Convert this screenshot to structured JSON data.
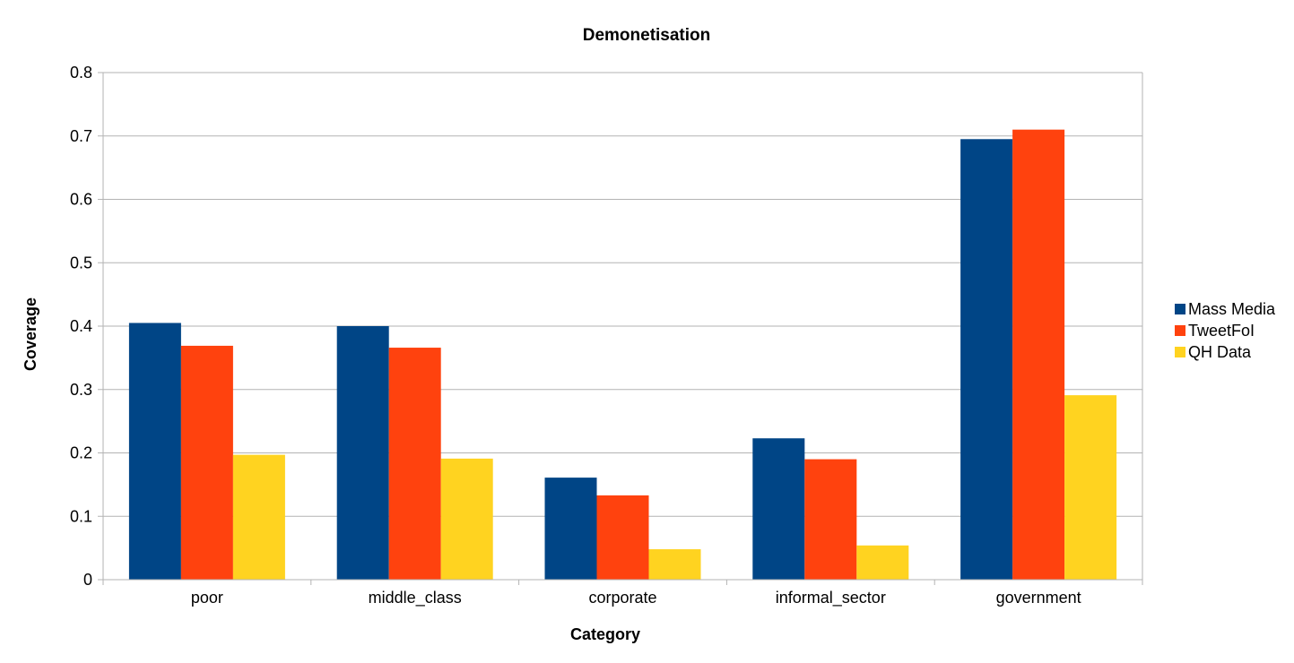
{
  "chart_data": {
    "type": "bar",
    "title": "Demonetisation",
    "xlabel": "Category",
    "ylabel": "Coverage",
    "categories": [
      "poor",
      "middle_class",
      "corporate",
      "informal_sector",
      "government"
    ],
    "series": [
      {
        "name": "Mass Media",
        "color": "#004586",
        "values": [
          0.405,
          0.4,
          0.161,
          0.223,
          0.695
        ]
      },
      {
        "name": "TweetFoI",
        "color": "#ff420e",
        "values": [
          0.369,
          0.366,
          0.133,
          0.19,
          0.71
        ]
      },
      {
        "name": "QH Data",
        "color": "#ffd320",
        "values": [
          0.197,
          0.191,
          0.048,
          0.054,
          0.291
        ]
      }
    ],
    "ylim": [
      0,
      0.8
    ],
    "yticks": [
      "0",
      "0.1",
      "0.2",
      "0.3",
      "0.4",
      "0.5",
      "0.6",
      "0.7",
      "0.8"
    ],
    "grid": true,
    "legend_position": "right"
  }
}
